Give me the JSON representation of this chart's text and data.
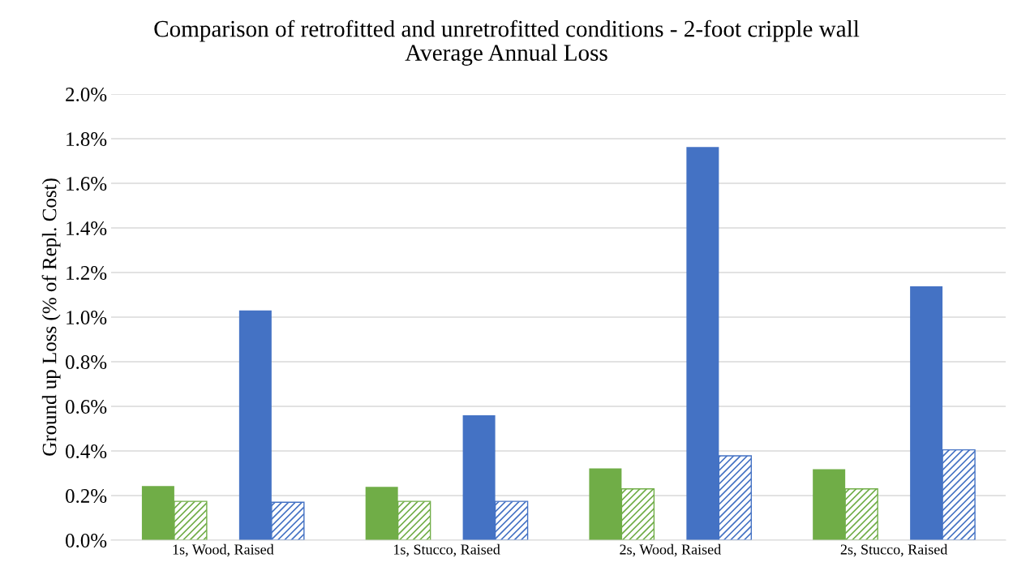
{
  "chart_data": {
    "type": "bar",
    "title": "Comparison of retrofitted and unretrofitted conditions - 2-foot cripple wall\nAverage Annual Loss",
    "ylabel": "Ground up Loss (% of Repl. Cost)",
    "categories": [
      "1s, Wood, Raised",
      "1s, Stucco, Raised",
      "2s, Wood, Raised",
      "2s, Stucco, Raised"
    ],
    "series": [
      {
        "color": "#70ad47",
        "values": [
          0.243,
          0.239,
          0.322,
          0.318
        ]
      },
      {
        "color": "#70ad47",
        "values": [
          0.174,
          0.174,
          0.23,
          0.23
        ]
      },
      {
        "values": [
          null,
          null,
          null,
          null
        ]
      },
      {
        "color": "#4472c4",
        "values": [
          1.03,
          0.56,
          1.763,
          1.138
        ]
      },
      {
        "color": "#4472c4",
        "values": [
          0.17,
          0.174,
          0.378,
          0.405
        ]
      }
    ],
    "ylim": [
      0,
      2.0
    ],
    "yticks": [
      {
        "value": 0,
        "label": "0.0%"
      },
      {
        "value": 0.2,
        "label": "0.2%"
      },
      {
        "value": 0.4,
        "label": "0.4%"
      },
      {
        "value": 0.6,
        "label": "0.6%"
      },
      {
        "value": 0.8,
        "label": "0.8%"
      },
      {
        "value": 1.0,
        "label": "1.0%"
      },
      {
        "value": 1.2,
        "label": "1.2%"
      },
      {
        "value": 1.4,
        "label": "1.4%"
      },
      {
        "value": 1.6,
        "label": "1.6%"
      },
      {
        "value": 1.8,
        "label": "1.8%"
      },
      {
        "value": 2.0,
        "label": "2.0%"
      }
    ],
    "grid": "y"
  }
}
